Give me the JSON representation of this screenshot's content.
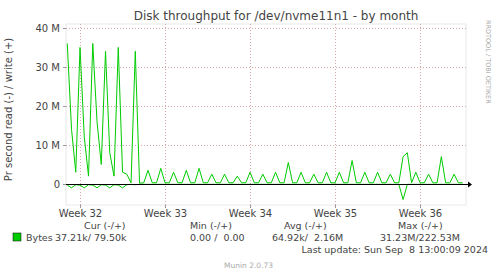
{
  "chart_data": {
    "type": "line",
    "title": "Disk throughput for /dev/nvme11n1 - by month",
    "y_label": "Pr second read (-) / write (+)",
    "x": [
      31.85,
      31.9,
      31.95,
      32,
      32.05,
      32.1,
      32.15,
      32.2,
      32.25,
      32.3,
      32.35,
      32.4,
      32.45,
      32.5,
      32.55,
      32.6,
      32.65,
      32.7,
      32.75,
      32.8,
      32.85,
      32.9,
      32.95,
      33,
      33.05,
      33.1,
      33.15,
      33.2,
      33.25,
      33.3,
      33.35,
      33.4,
      33.45,
      33.5,
      33.55,
      33.6,
      33.65,
      33.7,
      33.75,
      33.8,
      33.85,
      33.9,
      33.95,
      34,
      34.05,
      34.1,
      34.15,
      34.2,
      34.25,
      34.3,
      34.35,
      34.4,
      34.45,
      34.5,
      34.55,
      34.6,
      34.65,
      34.7,
      34.75,
      34.8,
      34.85,
      34.9,
      34.95,
      35,
      35.05,
      35.1,
      35.15,
      35.2,
      35.25,
      35.3,
      35.35,
      35.4,
      35.45,
      35.5,
      35.55,
      35.6,
      35.65,
      35.7,
      35.75,
      35.8,
      35.85,
      35.9,
      35.95,
      36,
      36.05,
      36.1,
      36.15,
      36.2,
      36.25,
      36.3,
      36.35,
      36.4,
      36.45,
      36.5
    ],
    "xlim": [
      31.835,
      36.54
    ],
    "xticks": [
      {
        "value": 32,
        "label": "Week 32"
      },
      {
        "value": 33,
        "label": "Week 33"
      },
      {
        "value": 34,
        "label": "Week 34"
      },
      {
        "value": 35,
        "label": "Week 35"
      },
      {
        "value": 36,
        "label": "Week 36"
      }
    ],
    "ylim": [
      -5400000,
      41000000
    ],
    "yticks": [
      0,
      {
        "value": 10000000,
        "label": "10 M"
      },
      {
        "value": 20000000,
        "label": "20 M"
      },
      {
        "value": 30000000,
        "label": "30 M"
      },
      {
        "value": 40000000,
        "label": "40 M"
      }
    ],
    "grid": true,
    "series": [
      {
        "name": "Bytes",
        "color": "#00cc00",
        "values": [
          36000000.0,
          14000000.0,
          3000000.0,
          35000000.0,
          12000000.0,
          2000000.0,
          36000000.0,
          16000000.0,
          5000000.0,
          34000000.0,
          8000000.0,
          2000000.0,
          35000000.0,
          3000000.0,
          2500000.0,
          300000.0,
          34000000.0,
          200000.0,
          300000.0,
          3500000.0,
          300000.0,
          300000.0,
          4000000.0,
          300000.0,
          300000.0,
          3000000.0,
          300000.0,
          300000.0,
          3500000.0,
          300000.0,
          300000.0,
          4000000.0,
          300000.0,
          300000.0,
          2500000.0,
          300000.0,
          300000.0,
          2500000.0,
          300000.0,
          300000.0,
          2000000.0,
          300000.0,
          300000.0,
          3000000.0,
          300000.0,
          300000.0,
          2500000.0,
          300000.0,
          300000.0,
          3000000.0,
          300000.0,
          300000.0,
          5500000.0,
          300000.0,
          300000.0,
          3000000.0,
          300000.0,
          300000.0,
          2500000.0,
          300000.0,
          300000.0,
          3000000.0,
          300000.0,
          300000.0,
          3000000.0,
          300000.0,
          300000.0,
          6000000.0,
          300000.0,
          300000.0,
          3000000.0,
          300000.0,
          300000.0,
          3000000.0,
          300000.0,
          300000.0,
          2500000.0,
          300000.0,
          300000.0,
          7000000.0,
          8000000.0,
          300000.0,
          3000000.0,
          300000.0,
          300000.0,
          2500000.0,
          300000.0,
          300000.0,
          7000000.0,
          300000.0,
          300000.0,
          2500000.0,
          300000.0,
          300000.0
        ]
      },
      {
        "color": "#00cc00",
        "values": [
          -300000.0,
          -1000000.0,
          -200000.0,
          -300000.0,
          -1000000.0,
          -200000.0,
          -300000.0,
          -1000000.0,
          -200000.0,
          -300000.0,
          -1000000.0,
          -200000.0,
          -300000.0,
          -1000000.0,
          -200000.0,
          -100000.0,
          -200000.0,
          -100000.0,
          -100000.0,
          -100000.0,
          -100000.0,
          -100000.0,
          -100000.0,
          -100000.0,
          -100000.0,
          -100000.0,
          -100000.0,
          -100000.0,
          -100000.0,
          -100000.0,
          -100000.0,
          -100000.0,
          -100000.0,
          -100000.0,
          -100000.0,
          -100000.0,
          -100000.0,
          -100000.0,
          -100000.0,
          -100000.0,
          -100000.0,
          -100000.0,
          -100000.0,
          -100000.0,
          -100000.0,
          -100000.0,
          -100000.0,
          -100000.0,
          -100000.0,
          -100000.0,
          -100000.0,
          -100000.0,
          -100000.0,
          -100000.0,
          -100000.0,
          -100000.0,
          -100000.0,
          -100000.0,
          -100000.0,
          -100000.0,
          -100000.0,
          -100000.0,
          -100000.0,
          -100000.0,
          -100000.0,
          -100000.0,
          -100000.0,
          -100000.0,
          -100000.0,
          -100000.0,
          -100000.0,
          -100000.0,
          -100000.0,
          -100000.0,
          -100000.0,
          -100000.0,
          -100000.0,
          -100000.0,
          -100000.0,
          -4000000.0,
          -100000.0,
          -100000.0,
          -100000.0,
          -100000.0,
          -100000.0,
          -100000.0,
          -100000.0,
          -100000.0,
          -100000.0,
          -100000.0,
          -100000.0,
          -100000.0,
          -100000.0,
          -100000.0
        ]
      }
    ],
    "stats": {
      "headers": [
        "Cur (-/+)",
        "Min (-/+)",
        "Avg (-/+)",
        "Max (-/+)"
      ],
      "rows": [
        [
          "Bytes",
          "37.21k/ 79.50k",
          "0.00 /  0.00",
          "64.92k/  2.16M",
          "31.23M/222.53M"
        ]
      ]
    },
    "last_update": "Last update: Sun Sep  8 13:00:09 2024",
    "footer": "Munin 2.0.73",
    "watermark": "RRDTOOL / TOBI OETIKER"
  }
}
